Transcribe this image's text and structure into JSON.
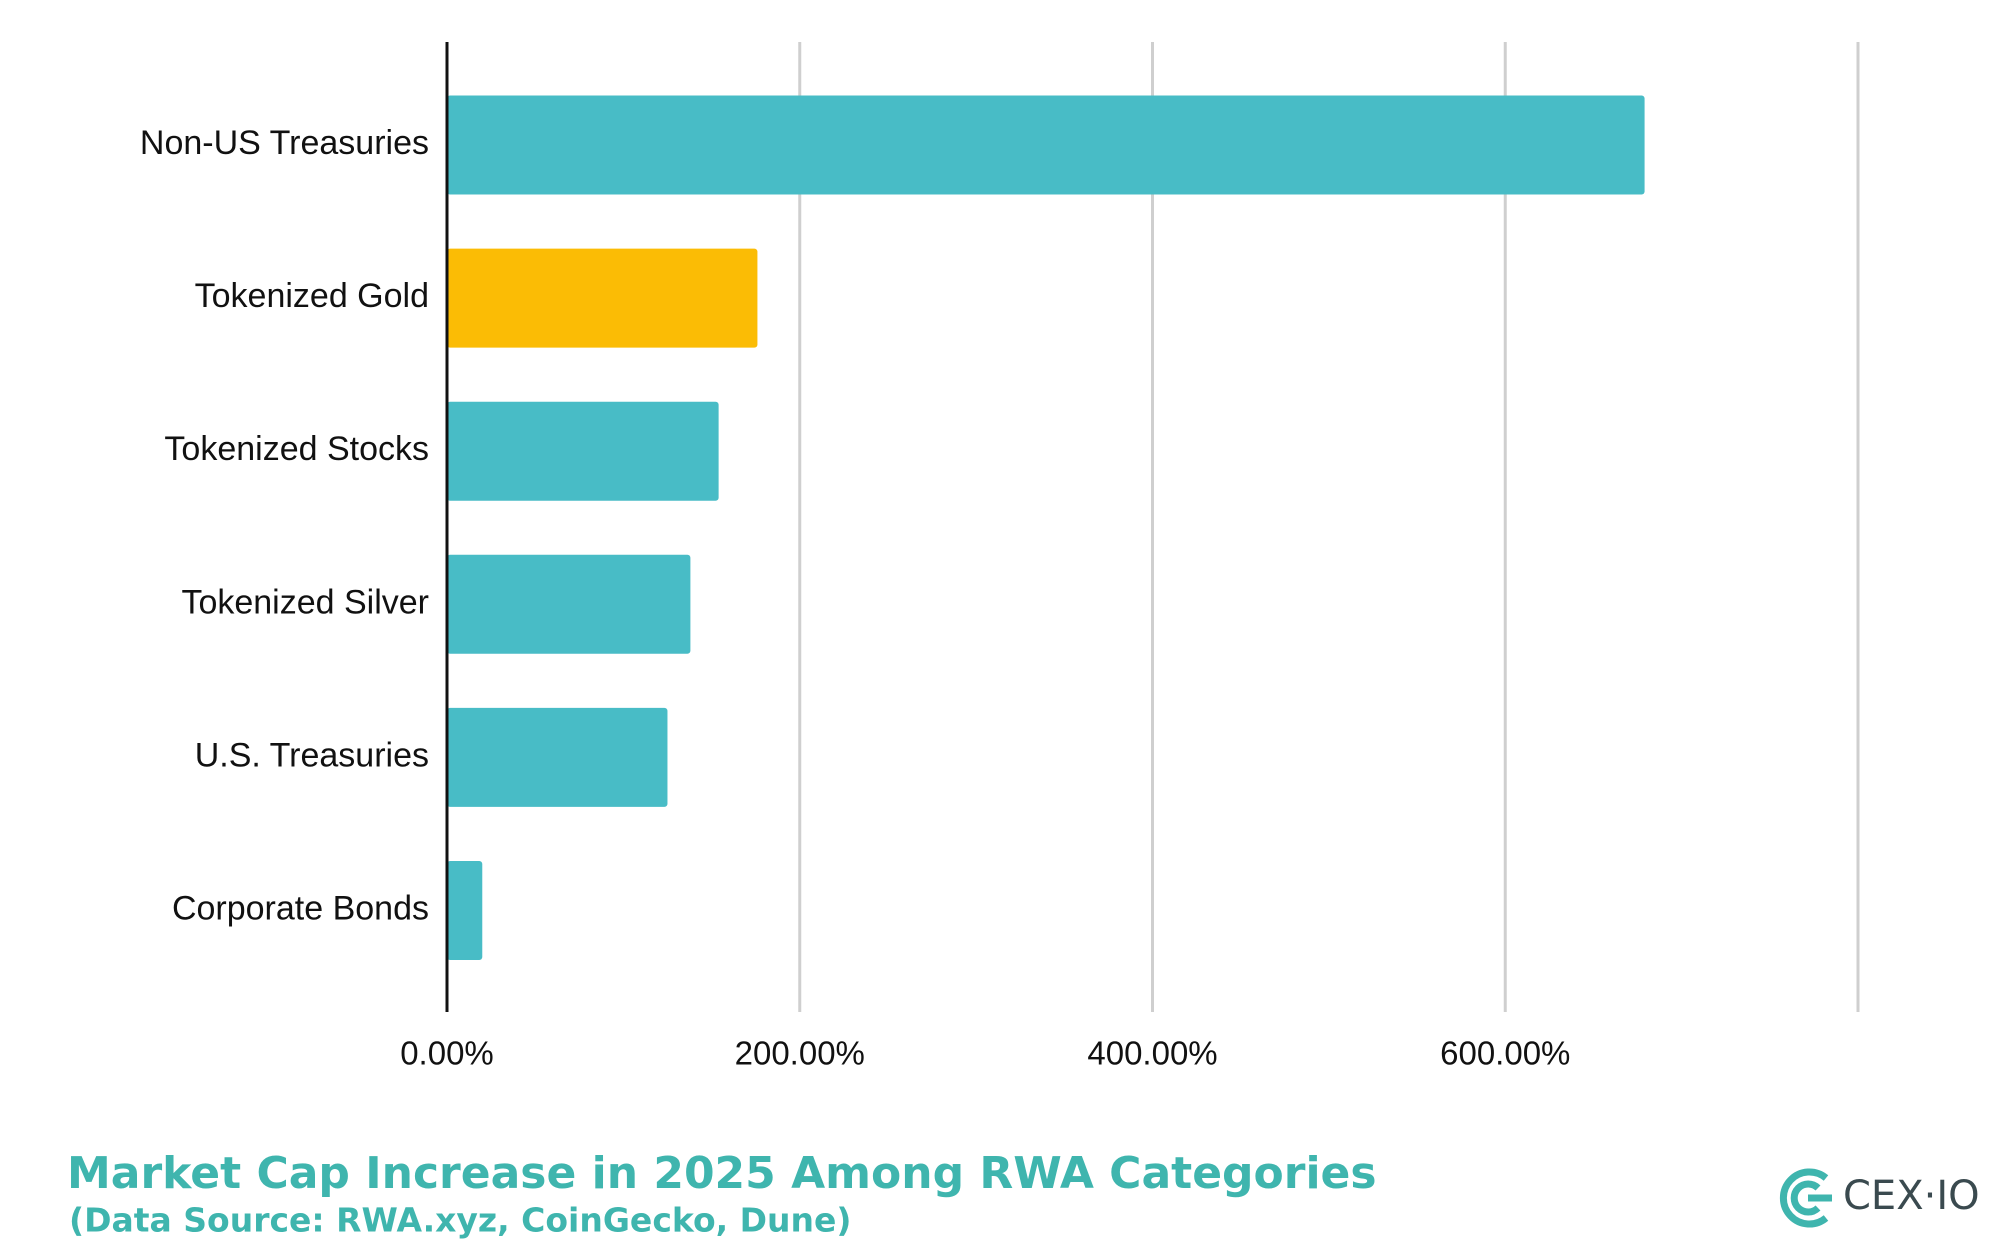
{
  "chart_data": {
    "type": "barh",
    "title": "Market Cap Increase in 2025 Among RWA Categories",
    "subtitle": "(Data Source: RWA.xyz, CoinGecko, Dune)",
    "categories": [
      "Non-US Treasuries",
      "Tokenized Gold",
      "Tokenized Stocks",
      "Tokenized Silver",
      "U.S. Treasuries",
      "Corporate Bonds"
    ],
    "values": [
      679,
      176,
      154,
      138,
      125,
      20
    ],
    "colors": [
      "#48bcc6",
      "#fbbc05",
      "#48bcc6",
      "#48bcc6",
      "#48bcc6",
      "#48bcc6"
    ],
    "xlim": [
      0,
      800
    ],
    "xticks": [
      {
        "value": 0,
        "label": "0.00%"
      },
      {
        "value": 200,
        "label": "200.00%"
      },
      {
        "value": 400,
        "label": "400.00%"
      },
      {
        "value": 600,
        "label": "600.00%"
      }
    ],
    "grid": true
  },
  "logo": "CEX·IO"
}
